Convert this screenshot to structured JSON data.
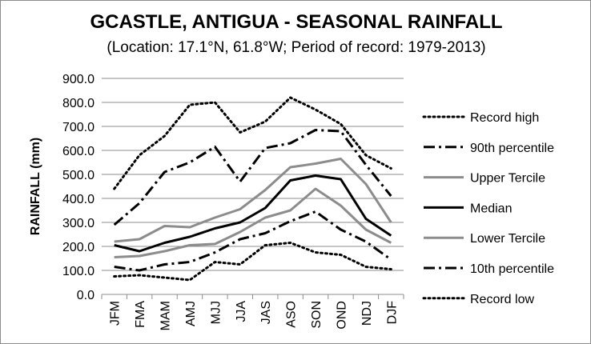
{
  "chart_data": {
    "type": "line",
    "title": "GCASTLE, ANTIGUA - SEASONAL RAINFALL",
    "subtitle": "(Location: 17.1°N, 61.8°W; Period of record: 1979-2013)",
    "xlabel": "",
    "ylabel": "RAINFALL (mm)",
    "ylim": [
      0,
      900
    ],
    "yticks": [
      "0.0",
      "100.0",
      "200.0",
      "300.0",
      "400.0",
      "500.0",
      "600.0",
      "700.0",
      "800.0",
      "900.0"
    ],
    "grid": true,
    "legend_position": "right",
    "categories": [
      "JFM",
      "FMA",
      "MAM",
      "AMJ",
      "MJJ",
      "JJA",
      "JAS",
      "ASO",
      "SON",
      "OND",
      "NDJ",
      "DJF"
    ],
    "series": [
      {
        "name": "Record high",
        "style": "dotted",
        "color": "#000000",
        "values": [
          440,
          580,
          660,
          790,
          800,
          675,
          720,
          820,
          770,
          710,
          580,
          525
        ]
      },
      {
        "name": "90th percentile",
        "style": "dashdot",
        "color": "#000000",
        "values": [
          290,
          380,
          510,
          550,
          615,
          470,
          610,
          630,
          685,
          680,
          540,
          410
        ]
      },
      {
        "name": "Upper Tercile",
        "style": "solid",
        "color": "#8c8c8c",
        "values": [
          220,
          230,
          285,
          280,
          320,
          355,
          435,
          530,
          545,
          565,
          460,
          300
        ]
      },
      {
        "name": "Median",
        "style": "solid",
        "color": "#000000",
        "values": [
          205,
          180,
          215,
          240,
          275,
          300,
          360,
          475,
          495,
          480,
          315,
          245
        ]
      },
      {
        "name": "Lower Tercile",
        "style": "solid",
        "color": "#8c8c8c",
        "values": [
          155,
          160,
          180,
          205,
          210,
          260,
          320,
          350,
          440,
          370,
          270,
          215
        ]
      },
      {
        "name": "10th percentile",
        "style": "dashdot",
        "color": "#000000",
        "values": [
          115,
          100,
          125,
          135,
          175,
          230,
          255,
          305,
          345,
          270,
          220,
          145
        ]
      },
      {
        "name": "Record low",
        "style": "dotted",
        "color": "#000000",
        "values": [
          75,
          80,
          70,
          60,
          135,
          125,
          205,
          215,
          175,
          165,
          115,
          105
        ]
      }
    ]
  }
}
